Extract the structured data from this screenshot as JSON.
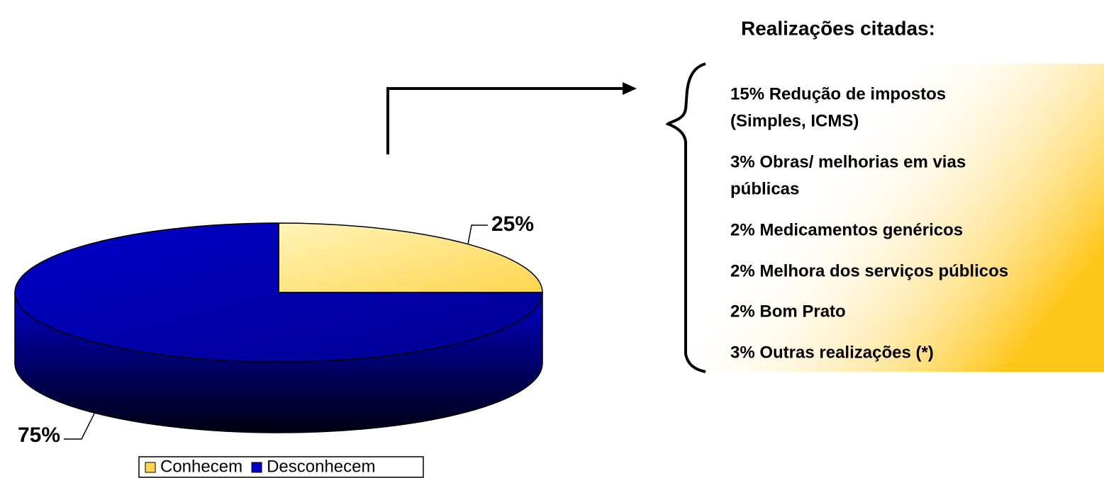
{
  "chart_data": {
    "type": "pie",
    "categories": [
      "Conhecem",
      "Desconhecem"
    ],
    "values": [
      25,
      75
    ],
    "value_labels": [
      "25%",
      "75%"
    ],
    "colors": [
      "#ffd54f",
      "#0000c8"
    ],
    "legend": "bottom"
  },
  "side_panel": {
    "title": "Realizações citadas:",
    "items": [
      [
        "15% Redução de impostos",
        "(Simples, ICMS)"
      ],
      [
        "3% Obras/ melhorias em vias",
        "públicas"
      ],
      [
        "2% Medicamentos genéricos"
      ],
      [
        "2% Melhora dos serviços públicos"
      ],
      [
        "2% Bom Prato"
      ],
      [
        "3% Outras realizações (*)"
      ]
    ]
  }
}
